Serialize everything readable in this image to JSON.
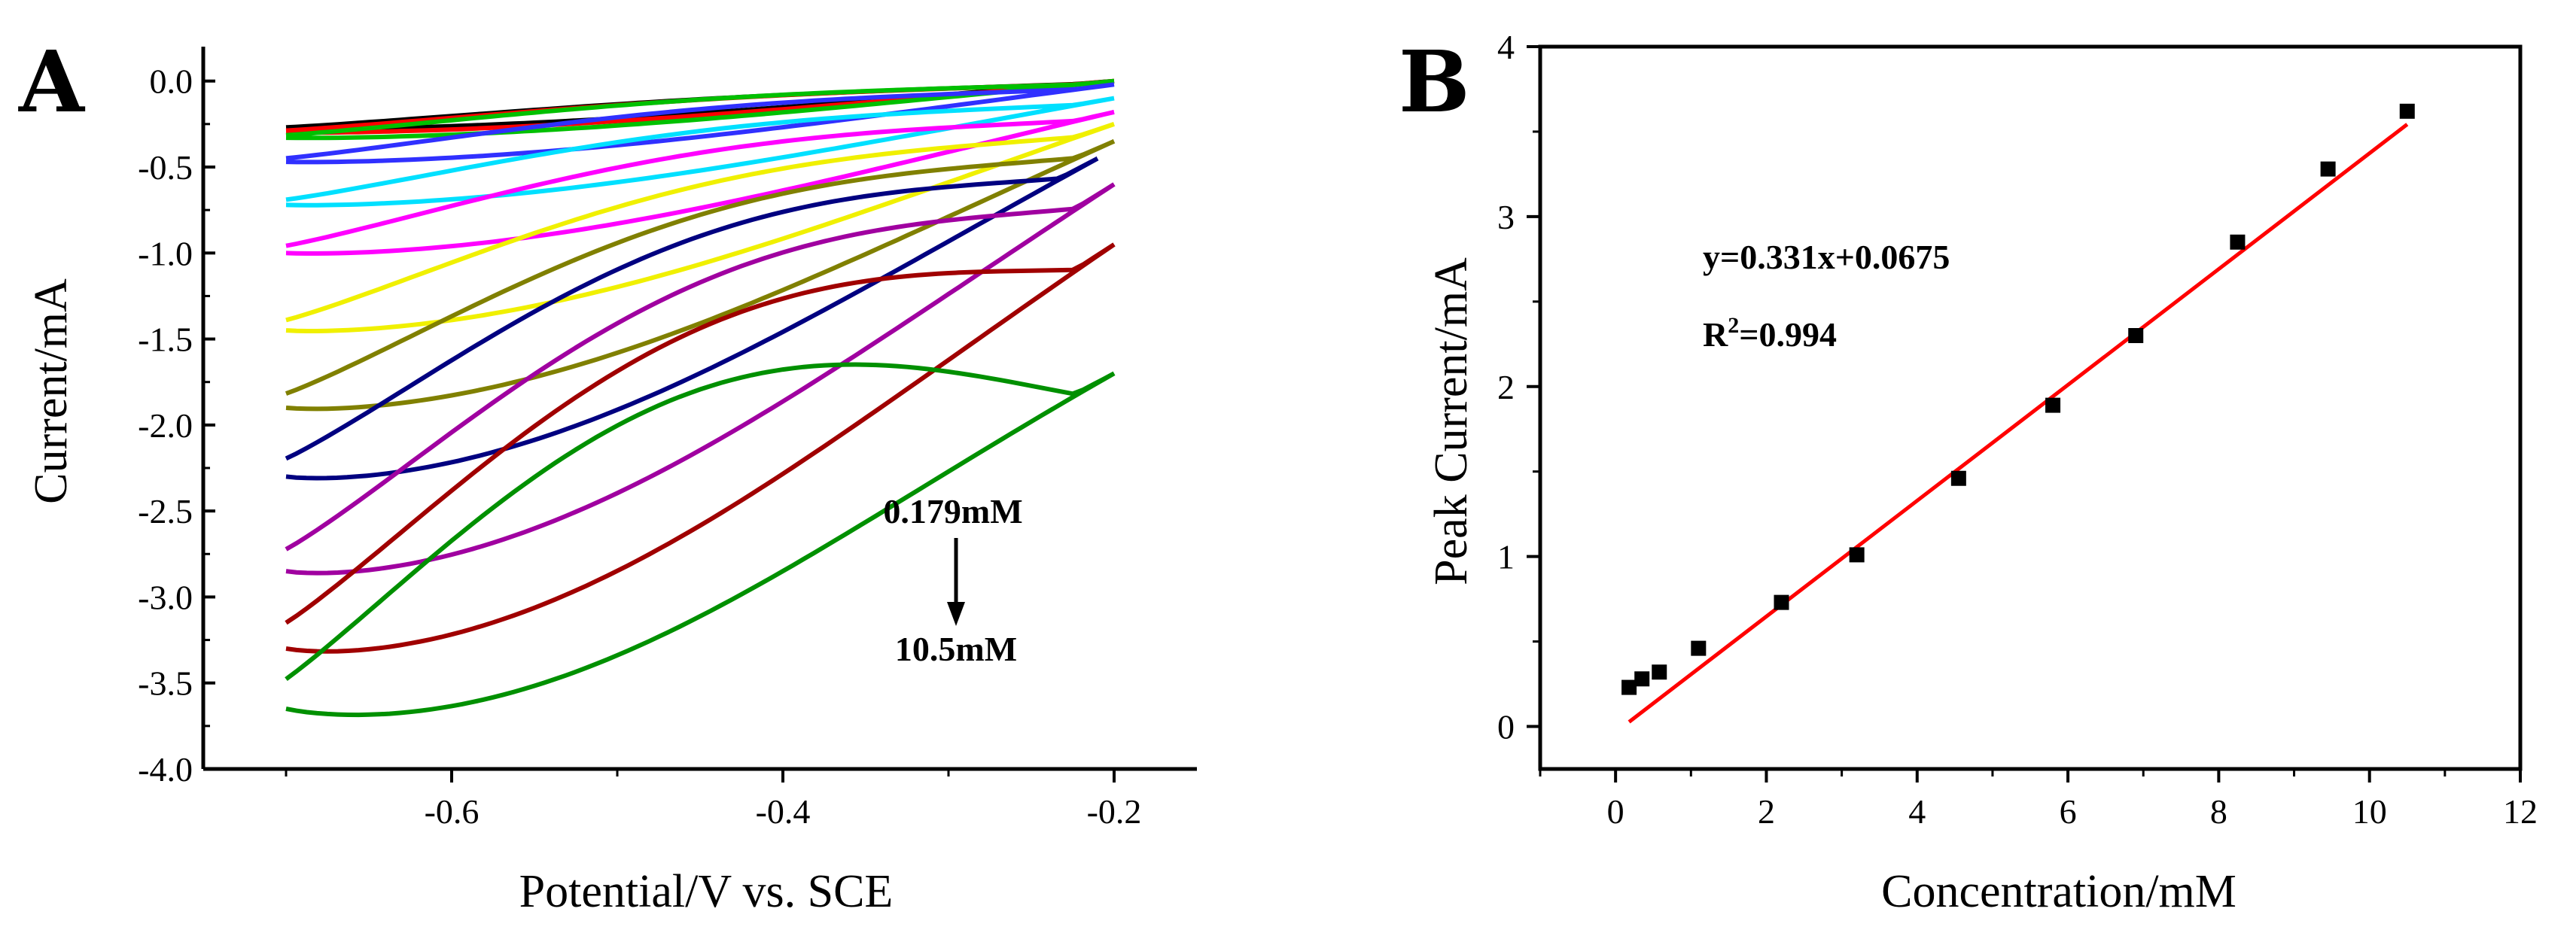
{
  "chart_data": [
    {
      "type": "line",
      "panel_label": "A",
      "xlabel": "Potential/V vs. SCE",
      "ylabel": "Current/mA",
      "xlim": [
        -0.75,
        -0.15
      ],
      "ylim": [
        -4.0,
        0.2
      ],
      "x_ticks": [
        -0.6,
        -0.4,
        -0.2
      ],
      "x_tick_labels": [
        "-0.6",
        "-0.4",
        "-0.2"
      ],
      "y_ticks": [
        0.0,
        -0.5,
        -1.0,
        -1.5,
        -2.0,
        -2.5,
        -3.0,
        -3.5,
        -4.0
      ],
      "y_tick_labels": [
        "0.0",
        "-0.5",
        "-1.0",
        "-1.5",
        "-2.0",
        "-2.5",
        "-3.0",
        "-3.5",
        "-4.0"
      ],
      "annotations": {
        "start": "0.179mM",
        "end": "10.5mM"
      },
      "series": [
        {
          "color": "#000000",
          "values": {
            "vmin": -0.7,
            "vmax": -0.2,
            "i_min": -0.28,
            "i_end": 0.0,
            "sep": 0.07
          }
        },
        {
          "color": "#ff0000",
          "values": {
            "vmin": -0.7,
            "vmax": -0.2,
            "i_min": -0.3,
            "i_end": 0.0,
            "sep": 0.08
          }
        },
        {
          "color": "#00c000",
          "values": {
            "vmin": -0.7,
            "vmax": -0.2,
            "i_min": -0.33,
            "i_end": 0.0,
            "sep": 0.1
          }
        },
        {
          "color": "#3030ff",
          "values": {
            "vmin": -0.7,
            "vmax": -0.2,
            "i_min": -0.47,
            "i_end": -0.02,
            "sep": 0.14
          }
        },
        {
          "color": "#00e0ff",
          "values": {
            "vmin": -0.7,
            "vmax": -0.2,
            "i_min": -0.72,
            "i_end": -0.1,
            "sep": 0.2
          }
        },
        {
          "color": "#ff00ff",
          "values": {
            "vmin": -0.7,
            "vmax": -0.2,
            "i_min": -1.0,
            "i_end": -0.18,
            "sep": 0.28
          }
        },
        {
          "color": "#f0f000",
          "values": {
            "vmin": -0.7,
            "vmax": -0.2,
            "i_min": -1.45,
            "i_end": -0.25,
            "sep": 0.4
          }
        },
        {
          "color": "#808000",
          "values": {
            "vmin": -0.7,
            "vmax": -0.2,
            "i_min": -1.9,
            "i_end": -0.35,
            "sep": 0.55
          }
        },
        {
          "color": "#000080",
          "values": {
            "vmin": -0.7,
            "vmax": -0.21,
            "i_min": -2.3,
            "i_end": -0.45,
            "sep": 0.7
          }
        },
        {
          "color": "#a000a0",
          "values": {
            "vmin": -0.7,
            "vmax": -0.2,
            "i_min": -2.85,
            "i_end": -0.6,
            "sep": 0.85
          }
        },
        {
          "color": "#a00000",
          "values": {
            "vmin": -0.7,
            "vmax": -0.2,
            "i_min": -3.3,
            "i_end": -0.95,
            "sep": 1.0
          }
        },
        {
          "color": "#009000",
          "values": {
            "vmin": -0.7,
            "vmax": -0.2,
            "i_min": -3.65,
            "i_end": -1.7,
            "sep": 1.15
          }
        }
      ]
    },
    {
      "type": "scatter",
      "panel_label": "B",
      "xlabel": "Concentration/mM",
      "ylabel": "Peak Current/mA",
      "xlim": [
        -1,
        12
      ],
      "ylim": [
        -0.25,
        4
      ],
      "x_ticks": [
        0,
        2,
        4,
        6,
        8,
        10,
        12
      ],
      "x_tick_labels": [
        "0",
        "2",
        "4",
        "6",
        "8",
        "10",
        "12"
      ],
      "y_ticks": [
        0,
        1,
        2,
        3,
        4
      ],
      "y_tick_labels": [
        "0",
        "1",
        "2",
        "3",
        "4"
      ],
      "x": [
        0.179,
        0.35,
        0.58,
        1.1,
        2.2,
        3.2,
        4.55,
        5.8,
        6.9,
        8.25,
        9.45,
        10.5
      ],
      "y": [
        0.23,
        0.28,
        0.32,
        0.46,
        0.73,
        1.01,
        1.46,
        1.89,
        2.3,
        2.85,
        3.28,
        3.62
      ],
      "fit": {
        "slope": 0.331,
        "intercept": 0.0675,
        "x_range": [
          0.179,
          10.5
        ]
      },
      "equation_text": "y=0.331x+0.0675",
      "r2_base": "R",
      "r2_sup": "2",
      "r2_value": "=0.994",
      "marker_color": "#000000",
      "fit_color": "#ff0000"
    }
  ]
}
